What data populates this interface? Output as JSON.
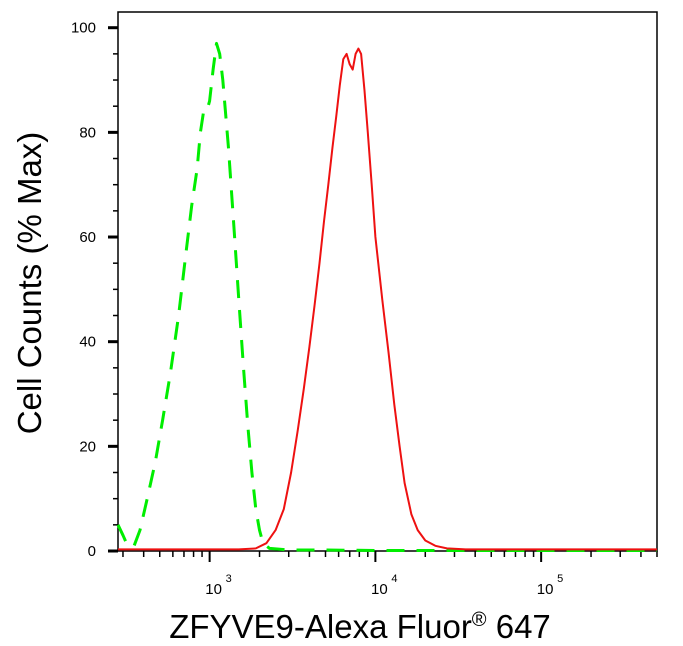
{
  "chart_data": {
    "type": "line",
    "xlabel_main": "ZFYVE9-Alexa Fluor",
    "xlabel_mark": "®",
    "xlabel_suffix": " 647",
    "ylabel": "Cell Counts (% Max)",
    "x_scale": "log",
    "xlim": [
      280,
      500000
    ],
    "ylim": [
      0,
      103
    ],
    "y_ticks": [
      0,
      20,
      40,
      60,
      80,
      100
    ],
    "x_ticks": [
      {
        "value": 1000,
        "label": "10",
        "exp": "3"
      },
      {
        "value": 10000,
        "label": "10",
        "exp": "4"
      },
      {
        "value": 100000,
        "label": "10",
        "exp": "5"
      }
    ],
    "series": [
      {
        "color": "#00ee00",
        "dash": "dashed",
        "points": [
          [
            280,
            5
          ],
          [
            300,
            3
          ],
          [
            320,
            1
          ],
          [
            350,
            1
          ],
          [
            380,
            4
          ],
          [
            420,
            10
          ],
          [
            470,
            17
          ],
          [
            520,
            25
          ],
          [
            580,
            34
          ],
          [
            650,
            45
          ],
          [
            720,
            57
          ],
          [
            780,
            66
          ],
          [
            840,
            73
          ],
          [
            880,
            80
          ],
          [
            920,
            84
          ],
          [
            960,
            84
          ],
          [
            1000,
            86
          ],
          [
            1050,
            92
          ],
          [
            1100,
            97
          ],
          [
            1150,
            95
          ],
          [
            1200,
            90
          ],
          [
            1300,
            77
          ],
          [
            1400,
            62
          ],
          [
            1500,
            48
          ],
          [
            1600,
            35
          ],
          [
            1700,
            24
          ],
          [
            1800,
            15
          ],
          [
            1900,
            8
          ],
          [
            2000,
            4
          ],
          [
            2100,
            1.5
          ],
          [
            2300,
            0.5
          ],
          [
            3000,
            0.2
          ],
          [
            5000,
            0.2
          ],
          [
            10000,
            0.1
          ],
          [
            40000,
            0.1
          ],
          [
            100000,
            0.1
          ],
          [
            500000,
            0.1
          ]
        ]
      },
      {
        "color": "#ee1111",
        "dash": "solid",
        "points": [
          [
            280,
            0.3
          ],
          [
            1000,
            0.3
          ],
          [
            1500,
            0.3
          ],
          [
            1900,
            0.5
          ],
          [
            2200,
            1.5
          ],
          [
            2500,
            4
          ],
          [
            2800,
            8
          ],
          [
            3100,
            15
          ],
          [
            3400,
            23
          ],
          [
            3700,
            31
          ],
          [
            4000,
            39
          ],
          [
            4300,
            47
          ],
          [
            4600,
            55
          ],
          [
            4900,
            63
          ],
          [
            5200,
            70
          ],
          [
            5500,
            77
          ],
          [
            5800,
            83
          ],
          [
            6100,
            89
          ],
          [
            6400,
            94
          ],
          [
            6700,
            95
          ],
          [
            7000,
            93
          ],
          [
            7300,
            92
          ],
          [
            7600,
            95
          ],
          [
            7900,
            96
          ],
          [
            8200,
            95
          ],
          [
            8600,
            88
          ],
          [
            9000,
            80
          ],
          [
            9500,
            70
          ],
          [
            10000,
            60
          ],
          [
            11000,
            48
          ],
          [
            12000,
            38
          ],
          [
            13000,
            28
          ],
          [
            14000,
            20
          ],
          [
            15000,
            13
          ],
          [
            16500,
            7
          ],
          [
            18000,
            4
          ],
          [
            20000,
            2
          ],
          [
            23000,
            1
          ],
          [
            27000,
            0.5
          ],
          [
            35000,
            0.3
          ],
          [
            100000,
            0.3
          ],
          [
            500000,
            0.3
          ]
        ]
      }
    ]
  }
}
